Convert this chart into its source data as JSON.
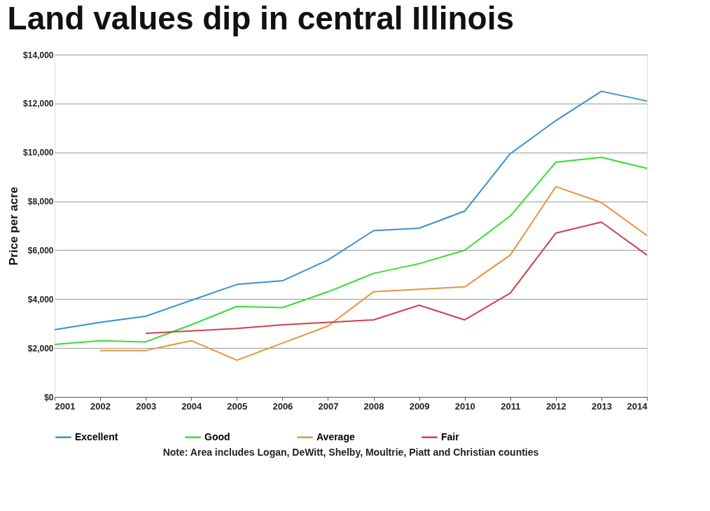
{
  "chart_data": {
    "type": "line",
    "title": "Land values dip in central Illinois",
    "ylabel": "Price per acre",
    "x": [
      2001,
      2002,
      2003,
      2004,
      2005,
      2006,
      2007,
      2008,
      2009,
      2010,
      2011,
      2012,
      2013,
      2014
    ],
    "series": [
      {
        "name": "Excellent",
        "color": "#3a8fd0",
        "values": [
          2750,
          3050,
          3300,
          3950,
          4600,
          4750,
          5600,
          6800,
          6900,
          7600,
          9950,
          11300,
          12500,
          12100
        ]
      },
      {
        "name": "Good",
        "color": "#33dd33",
        "values": [
          2150,
          2300,
          2250,
          2950,
          3700,
          3650,
          4300,
          5050,
          5450,
          6000,
          7400,
          9600,
          9800,
          9350
        ]
      },
      {
        "name": "Average",
        "color": "#e8953a",
        "values": [
          null,
          1900,
          1900,
          2300,
          1500,
          2200,
          2900,
          4300,
          4400,
          4500,
          5800,
          8600,
          7950,
          6600
        ]
      },
      {
        "name": "Fair",
        "color": "#d0404a",
        "values": [
          null,
          null,
          2600,
          2700,
          2800,
          2950,
          3050,
          3150,
          3750,
          3150,
          4250,
          6700,
          7150,
          5800
        ]
      }
    ],
    "xlim": [
      2001,
      2014
    ],
    "xticks": [
      2001,
      2002,
      2003,
      2004,
      2005,
      2006,
      2007,
      2008,
      2009,
      2010,
      2011,
      2012,
      2013,
      2014
    ],
    "ylim": [
      0,
      14000
    ],
    "yticks": [
      {
        "value": 0,
        "label": "$0"
      },
      {
        "value": 2000,
        "label": "$2,000"
      },
      {
        "value": 4000,
        "label": "$4,000"
      },
      {
        "value": 6000,
        "label": "$6,000"
      },
      {
        "value": 8000,
        "label": "$8,000"
      },
      {
        "value": 10000,
        "label": "$10,000"
      },
      {
        "value": 12000,
        "label": "$12,000"
      },
      {
        "value": 14000,
        "label": "$14,000"
      }
    ],
    "grid": "y",
    "legend": "bottom",
    "marker": "none",
    "line_style": "solid",
    "annotations": [
      "Note: Area includes Logan, DeWitt, Shelby, Moultrie, Piatt and Christian counties"
    ]
  }
}
